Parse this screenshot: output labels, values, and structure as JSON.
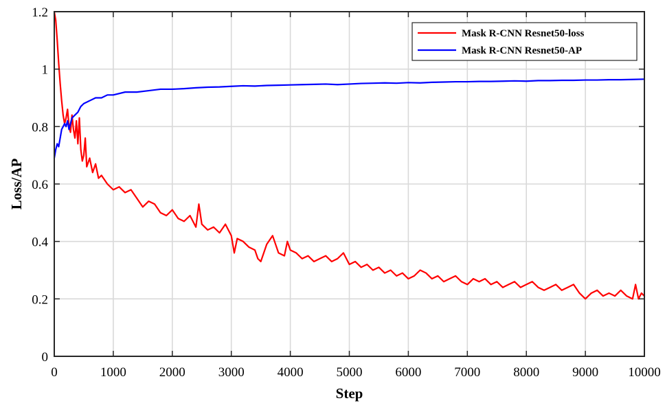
{
  "chart_data": {
    "type": "line",
    "title": "",
    "xlabel": "Step",
    "ylabel": "Loss/AP",
    "xlim": [
      0,
      10000
    ],
    "ylim": [
      0,
      1.2
    ],
    "x_ticks": [
      0,
      1000,
      2000,
      3000,
      4000,
      5000,
      6000,
      7000,
      8000,
      9000,
      10000
    ],
    "x_tick_labels": [
      "0",
      "1000",
      "2000",
      "3000",
      "4000",
      "5000",
      "6000",
      "7000",
      "8000",
      "9000",
      "10000"
    ],
    "y_ticks": [
      0,
      0.2,
      0.4,
      0.6,
      0.8,
      1.0,
      1.2
    ],
    "y_tick_labels": [
      "0",
      "0.2",
      "0.4",
      "0.6",
      "0.8",
      "1",
      "1.2"
    ],
    "grid": true,
    "legend_position": "top-right",
    "series": [
      {
        "name": "Mask R-CNN Resnet50-loss",
        "color": "#ff0000",
        "x": [
          0,
          25,
          50,
          75,
          100,
          125,
          150,
          175,
          200,
          225,
          250,
          275,
          300,
          325,
          350,
          375,
          400,
          425,
          450,
          475,
          500,
          525,
          550,
          600,
          650,
          700,
          750,
          800,
          900,
          1000,
          1100,
          1200,
          1300,
          1400,
          1500,
          1600,
          1700,
          1800,
          1900,
          2000,
          2100,
          2200,
          2300,
          2400,
          2450,
          2500,
          2600,
          2700,
          2800,
          2900,
          3000,
          3050,
          3100,
          3200,
          3300,
          3400,
          3450,
          3500,
          3600,
          3700,
          3800,
          3900,
          3950,
          4000,
          4100,
          4200,
          4300,
          4400,
          4500,
          4600,
          4700,
          4800,
          4900,
          5000,
          5100,
          5200,
          5300,
          5400,
          5500,
          5600,
          5700,
          5800,
          5900,
          6000,
          6100,
          6200,
          6300,
          6400,
          6500,
          6600,
          6700,
          6800,
          6900,
          7000,
          7100,
          7200,
          7300,
          7400,
          7500,
          7600,
          7700,
          7800,
          7900,
          8000,
          8100,
          8200,
          8300,
          8400,
          8500,
          8600,
          8700,
          8800,
          8900,
          9000,
          9100,
          9200,
          9300,
          9400,
          9500,
          9600,
          9700,
          9800,
          9850,
          9900,
          9950,
          10000
        ],
        "y": [
          1.2,
          1.17,
          1.1,
          1.02,
          0.95,
          0.89,
          0.84,
          0.81,
          0.83,
          0.86,
          0.8,
          0.78,
          0.84,
          0.79,
          0.76,
          0.82,
          0.74,
          0.83,
          0.72,
          0.68,
          0.7,
          0.76,
          0.66,
          0.69,
          0.64,
          0.67,
          0.62,
          0.63,
          0.6,
          0.58,
          0.59,
          0.57,
          0.58,
          0.55,
          0.52,
          0.54,
          0.53,
          0.5,
          0.49,
          0.51,
          0.48,
          0.47,
          0.49,
          0.45,
          0.53,
          0.46,
          0.44,
          0.45,
          0.43,
          0.46,
          0.42,
          0.36,
          0.41,
          0.4,
          0.38,
          0.37,
          0.34,
          0.33,
          0.39,
          0.42,
          0.36,
          0.35,
          0.4,
          0.37,
          0.36,
          0.34,
          0.35,
          0.33,
          0.34,
          0.35,
          0.33,
          0.34,
          0.36,
          0.32,
          0.33,
          0.31,
          0.32,
          0.3,
          0.31,
          0.29,
          0.3,
          0.28,
          0.29,
          0.27,
          0.28,
          0.3,
          0.29,
          0.27,
          0.28,
          0.26,
          0.27,
          0.28,
          0.26,
          0.25,
          0.27,
          0.26,
          0.27,
          0.25,
          0.26,
          0.24,
          0.25,
          0.26,
          0.24,
          0.25,
          0.26,
          0.24,
          0.23,
          0.24,
          0.25,
          0.23,
          0.24,
          0.25,
          0.22,
          0.2,
          0.22,
          0.23,
          0.21,
          0.22,
          0.21,
          0.23,
          0.21,
          0.2,
          0.25,
          0.2,
          0.22,
          0.21
        ]
      },
      {
        "name": "Mask R-CNN Resnet50-AP",
        "color": "#0000ff",
        "x": [
          0,
          25,
          50,
          75,
          100,
          125,
          150,
          175,
          200,
          225,
          250,
          275,
          300,
          350,
          400,
          450,
          500,
          600,
          700,
          800,
          900,
          1000,
          1200,
          1400,
          1600,
          1800,
          2000,
          2200,
          2400,
          2600,
          2800,
          3000,
          3200,
          3400,
          3600,
          3800,
          4000,
          4200,
          4400,
          4600,
          4800,
          5000,
          5200,
          5400,
          5600,
          5800,
          6000,
          6200,
          6400,
          6600,
          6800,
          7000,
          7200,
          7400,
          7600,
          7800,
          8000,
          8200,
          8400,
          8600,
          8800,
          9000,
          9200,
          9400,
          9600,
          9800,
          10000
        ],
        "y": [
          0.69,
          0.72,
          0.74,
          0.73,
          0.76,
          0.79,
          0.8,
          0.81,
          0.8,
          0.82,
          0.79,
          0.81,
          0.83,
          0.84,
          0.85,
          0.87,
          0.88,
          0.89,
          0.9,
          0.9,
          0.91,
          0.91,
          0.92,
          0.92,
          0.925,
          0.93,
          0.93,
          0.932,
          0.935,
          0.937,
          0.938,
          0.94,
          0.942,
          0.941,
          0.943,
          0.944,
          0.945,
          0.946,
          0.947,
          0.948,
          0.946,
          0.948,
          0.95,
          0.951,
          0.952,
          0.951,
          0.953,
          0.952,
          0.954,
          0.955,
          0.956,
          0.956,
          0.957,
          0.957,
          0.958,
          0.959,
          0.958,
          0.96,
          0.96,
          0.961,
          0.961,
          0.962,
          0.962,
          0.963,
          0.963,
          0.964,
          0.965
        ]
      }
    ]
  }
}
